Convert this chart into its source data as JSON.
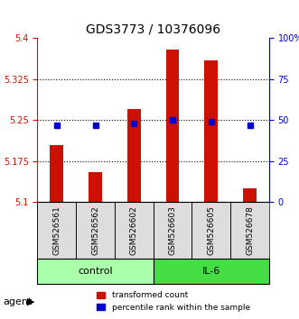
{
  "title": "GDS3773 / 10376096",
  "samples": [
    "GSM526561",
    "GSM526562",
    "GSM526602",
    "GSM526603",
    "GSM526605",
    "GSM526678"
  ],
  "groups": [
    "control",
    "control",
    "control",
    "IL-6",
    "IL-6",
    "IL-6"
  ],
  "transformed_counts": [
    5.205,
    5.155,
    5.27,
    5.38,
    5.36,
    5.125
  ],
  "percentile_ranks": [
    47,
    47,
    48,
    50,
    49,
    47
  ],
  "ylim_left": [
    5.1,
    5.4
  ],
  "ylim_right": [
    0,
    100
  ],
  "yticks_left": [
    5.1,
    5.175,
    5.25,
    5.325,
    5.4
  ],
  "yticks_right": [
    0,
    25,
    50,
    75,
    100
  ],
  "ytick_labels_left": [
    "5.1",
    "5.175",
    "5.25",
    "5.325",
    "5.4"
  ],
  "ytick_labels_right": [
    "0",
    "25",
    "50",
    "75",
    "100%"
  ],
  "hlines": [
    5.175,
    5.25,
    5.325
  ],
  "bar_color": "#cc1100",
  "dot_color": "#0000cc",
  "bar_bottom": 5.1,
  "group_colors": {
    "control": "#aaffaa",
    "IL-6": "#44dd44"
  },
  "group_label": "agent",
  "legend_items": [
    "transformed count",
    "percentile rank within the sample"
  ],
  "legend_colors": [
    "#cc1100",
    "#0000cc"
  ]
}
